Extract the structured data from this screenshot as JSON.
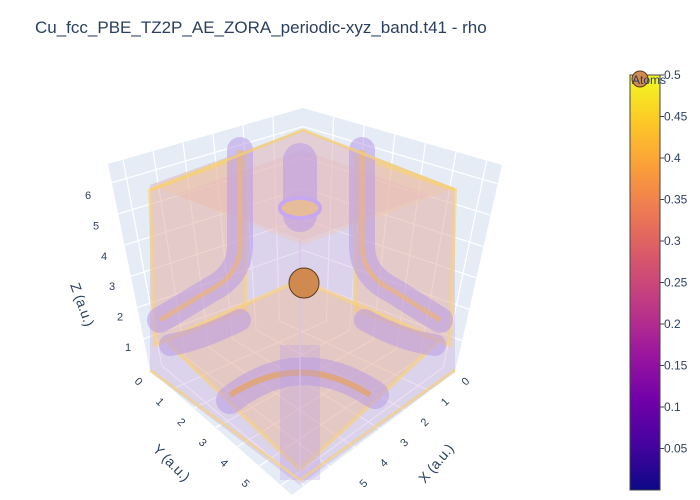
{
  "chart_data": {
    "type": "volume-3d",
    "title": "Cu_fcc_PBE_TZ2P_AE_ZORA_periodic-xyz_band.t41 - rho",
    "axes": {
      "x": {
        "label": "X (a.u.)",
        "ticks": [
          "0",
          "1",
          "2",
          "3",
          "4",
          "5"
        ]
      },
      "y": {
        "label": "Y (a.u.)",
        "ticks": [
          "0",
          "1",
          "2",
          "3",
          "4",
          "5"
        ]
      },
      "z": {
        "label": "Z (a.u.)",
        "ticks": [
          "1",
          "2",
          "3",
          "4",
          "5",
          "6"
        ]
      }
    },
    "colorbar": {
      "title": "Atoms",
      "range": [
        0,
        0.5
      ],
      "ticks": [
        "0.05",
        "0.1",
        "0.15",
        "0.2",
        "0.25",
        "0.3",
        "0.35",
        "0.4",
        "0.45",
        "0.5"
      ],
      "colorscale": [
        "#0d0887",
        "#46039f",
        "#7201a8",
        "#9c179e",
        "#bd3786",
        "#d8576b",
        "#ed7953",
        "#fb9f3a",
        "#fdca26",
        "#f0f921"
      ]
    },
    "series": [
      {
        "name": "Atoms",
        "type": "scatter3d",
        "points": [
          {
            "x": 3.41,
            "y": 3.41,
            "z": 3.41
          }
        ],
        "color": "#d08a4f"
      }
    ],
    "grid": true
  }
}
